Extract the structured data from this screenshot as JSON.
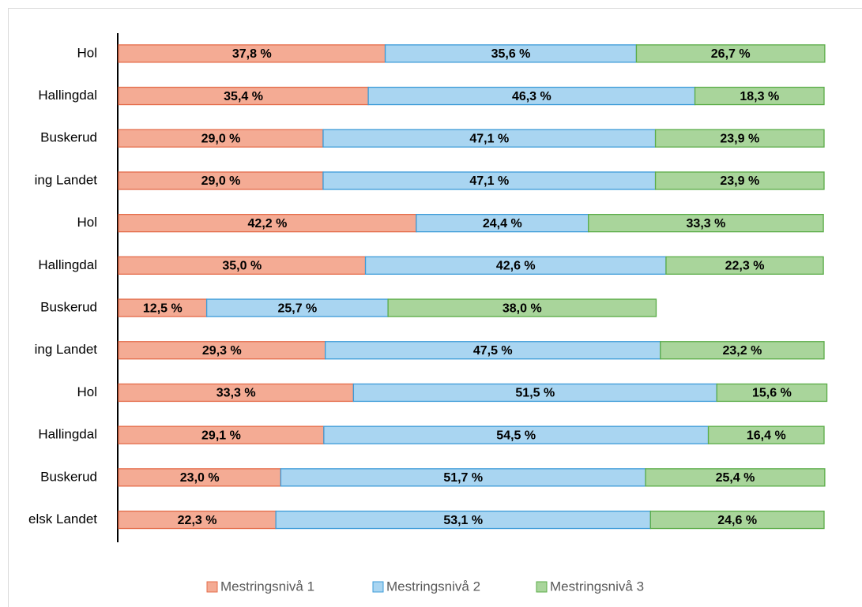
{
  "chart_data": {
    "type": "stacked-bar-horizontal",
    "categories": [
      "Hol",
      "Hallingdal",
      "Buskerud",
      "ing Landet",
      "Hol",
      "Hallingdal",
      "Buskerud",
      "ing  Landet",
      "Hol",
      "Hallingdal",
      "Buskerud",
      "elsk Landet"
    ],
    "xlim": [
      0,
      100
    ],
    "legend": "bottom",
    "series": [
      {
        "name": "Mestringsnivå 1",
        "color": "#f4ab94",
        "stroke": "#e46c4a",
        "values": [
          37.8,
          35.4,
          29.0,
          29.0,
          42.2,
          35.0,
          12.5,
          29.3,
          33.3,
          29.1,
          23.0,
          22.3
        ],
        "value_labels": [
          "37,8 %",
          "35,4 %",
          "29,0 %",
          "29,0 %",
          "42,2 %",
          "35,0 %",
          "12,5 %",
          "29,3 %",
          "33,3 %",
          "29,1 %",
          "23,0 %",
          "22,3 %"
        ]
      },
      {
        "name": "Mestringsnivå 2",
        "color": "#a9d5f1",
        "stroke": "#3c9bd8",
        "values": [
          35.6,
          46.3,
          47.1,
          47.1,
          24.4,
          42.6,
          25.7,
          47.5,
          51.5,
          54.5,
          51.7,
          53.1
        ],
        "value_labels": [
          "35,6 %",
          "46,3 %",
          "47,1 %",
          "47,1 %",
          "24,4 %",
          "42,6 %",
          "25,7 %",
          "47,5 %",
          "51,5 %",
          "54,5 %",
          "51,7 %",
          "53,1 %"
        ]
      },
      {
        "name": "Mestringsnivå 3",
        "color": "#a9d59b",
        "stroke": "#5aac47",
        "values": [
          26.7,
          18.3,
          23.9,
          23.9,
          33.3,
          22.3,
          38.0,
          23.2,
          15.6,
          16.4,
          25.4,
          24.6
        ],
        "value_labels": [
          "26,7 %",
          "18,3 %",
          "23,9 %",
          "23,9 %",
          "33,3 %",
          "22,3 %",
          "38,0 %",
          "23,2 %",
          "15,6 %",
          "16,4 %",
          "25,4 %",
          "24,6 %"
        ]
      }
    ]
  }
}
